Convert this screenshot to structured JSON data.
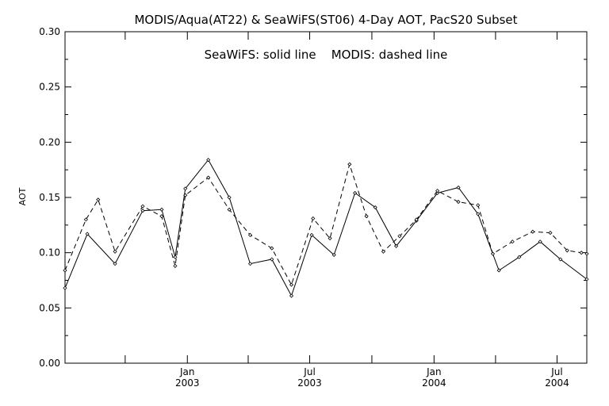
{
  "chart_data": {
    "type": "line",
    "title": "MODIS/Aqua(AT22) & SeaWiFS(ST06) 4-Day AOT, PacS20 Subset",
    "annotation": "SeaWiFS: solid line    MODIS: dashed line",
    "ylabel": "AOT",
    "xlabel": "",
    "xlim": [
      "2002-07-04",
      "2004-08-14"
    ],
    "ylim": [
      0,
      0.3
    ],
    "y_ticks": [
      "0.00",
      "0.05",
      "0.10",
      "0.15",
      "0.20",
      "0.25",
      "0.30"
    ],
    "x_tick_dates": [
      "2002-10-01",
      "2003-01-01",
      "2003-04-01",
      "2003-07-01",
      "2003-10-01",
      "2004-01-01",
      "2004-04-01",
      "2004-07-01"
    ],
    "x_tick_labels": [
      {
        "date": "2003-01-01",
        "month": "Jan",
        "year": "2003"
      },
      {
        "date": "2003-07-01",
        "month": "Jul",
        "year": "2003"
      },
      {
        "date": "2004-01-01",
        "month": "Jan",
        "year": "2004"
      },
      {
        "date": "2004-07-01",
        "month": "Jul",
        "year": "2004"
      }
    ],
    "grid": false,
    "series": [
      {
        "name": "SeaWiFS",
        "style": "solid",
        "x": [
          "2002-07-04",
          "2002-08-06",
          "2002-09-16",
          "2002-10-27",
          "2002-11-24",
          "2002-12-14",
          "2002-12-29",
          "2003-02-01",
          "2003-03-04",
          "2003-04-04",
          "2003-05-06",
          "2003-06-04",
          "2003-07-04",
          "2003-08-06",
          "2003-09-06",
          "2003-10-06",
          "2003-11-06",
          "2003-12-06",
          "2004-01-06",
          "2004-02-06",
          "2004-03-06",
          "2004-04-06",
          "2004-05-06",
          "2004-06-06",
          "2004-07-06",
          "2004-08-14"
        ],
        "values": [
          0.068,
          0.117,
          0.09,
          0.138,
          0.139,
          0.096,
          0.158,
          0.184,
          0.15,
          0.09,
          0.094,
          0.061,
          0.116,
          0.098,
          0.154,
          0.141,
          0.106,
          0.129,
          0.154,
          0.159,
          0.135,
          0.084,
          0.096,
          0.11,
          0.094,
          0.076
        ]
      },
      {
        "name": "MODIS",
        "style": "dashed",
        "x": [
          "2002-07-04",
          "2002-08-04",
          "2002-08-22",
          "2002-09-16",
          "2002-10-27",
          "2002-11-24",
          "2002-12-14",
          "2002-12-29",
          "2003-02-01",
          "2003-03-04",
          "2003-04-04",
          "2003-05-06",
          "2003-06-04",
          "2003-07-06",
          "2003-07-31",
          "2003-08-29",
          "2003-09-23",
          "2003-10-18",
          "2003-11-11",
          "2003-12-06",
          "2004-01-06",
          "2004-02-06",
          "2004-03-06",
          "2004-03-28",
          "2004-04-26",
          "2004-05-26",
          "2004-06-21",
          "2004-07-16",
          "2004-08-06",
          "2004-08-14"
        ],
        "values": [
          0.084,
          0.13,
          0.148,
          0.101,
          0.142,
          0.133,
          0.088,
          0.152,
          0.168,
          0.139,
          0.116,
          0.104,
          0.071,
          0.131,
          0.113,
          0.18,
          0.133,
          0.101,
          0.115,
          0.13,
          0.156,
          0.146,
          0.143,
          0.099,
          0.11,
          0.119,
          0.118,
          0.102,
          0.1,
          0.099
        ]
      }
    ],
    "markers": "small diamonds",
    "colors": {
      "line": "#000000",
      "background": "#ffffff"
    }
  }
}
